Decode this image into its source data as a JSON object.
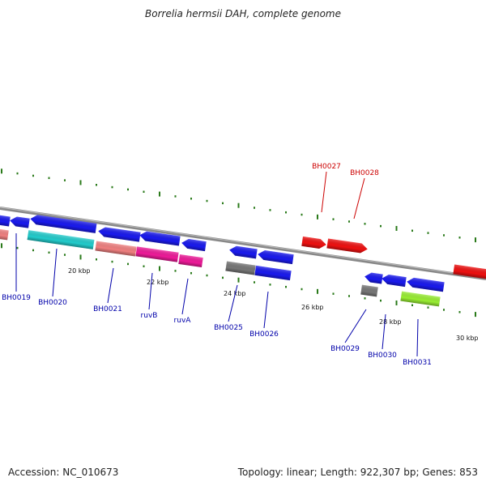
{
  "title": "Borrelia hermsii DAH, complete genome",
  "footer": {
    "accession": "Accession: NC_010673",
    "summary": "Topology: linear; Length: 922,307 bp; Genes: 853"
  },
  "colors": {
    "backbone": "#888888",
    "forward_label": "#cc0000",
    "reverse_label": "#0000aa",
    "tick": "#2a7a1a"
  },
  "ticks": [
    {
      "label": "20 kbp"
    },
    {
      "label": "22 kbp"
    },
    {
      "label": "24 kbp"
    },
    {
      "label": "26 kbp"
    },
    {
      "label": "28 kbp"
    },
    {
      "label": "30 kbp"
    }
  ],
  "genes": [
    {
      "id": "g0",
      "label": "",
      "color": "#f08080",
      "shape": "box"
    },
    {
      "id": "g1",
      "label": "",
      "color": "#1a1aee",
      "shape": "left"
    },
    {
      "id": "g2",
      "label": "",
      "color": "#1a1aee",
      "shape": "left"
    },
    {
      "id": "g3",
      "label": "BH0019",
      "color": "#1a1aee",
      "shape": "left"
    },
    {
      "id": "g4",
      "label": "BH0020",
      "color": "#22cccc",
      "shape": "box"
    },
    {
      "id": "g5",
      "label": "",
      "color": "#1a1aee",
      "shape": "left"
    },
    {
      "id": "g6",
      "label": "BH0021",
      "color": "#f08080",
      "shape": "box"
    },
    {
      "id": "g7",
      "label": "",
      "color": "#1a1aee",
      "shape": "left"
    },
    {
      "id": "g8",
      "label": "ruvB",
      "color": "#ee1a99",
      "shape": "box"
    },
    {
      "id": "g9",
      "label": "",
      "color": "#1a1aee",
      "shape": "left"
    },
    {
      "id": "g10",
      "label": "ruvA",
      "color": "#ee1a99",
      "shape": "box"
    },
    {
      "id": "g11",
      "label": "",
      "color": "#1a1aee",
      "shape": "left"
    },
    {
      "id": "g12",
      "label": "BH0025",
      "color": "#777777",
      "shape": "box"
    },
    {
      "id": "g13",
      "label": "",
      "color": "#1a1aee",
      "shape": "left"
    },
    {
      "id": "g14",
      "label": "BH0026",
      "color": "#1a1aee",
      "shape": "box"
    },
    {
      "id": "g15",
      "label": "BH0027",
      "color": "#ee1111",
      "shape": "right"
    },
    {
      "id": "g16",
      "label": "BH0028",
      "color": "#ee1111",
      "shape": "right"
    },
    {
      "id": "g17",
      "label": "",
      "color": "#1a1aee",
      "shape": "left"
    },
    {
      "id": "g18",
      "label": "BH0029",
      "color": "#777777",
      "shape": "box"
    },
    {
      "id": "g19",
      "label": "BH0030",
      "color": "#1a1aee",
      "shape": "left"
    },
    {
      "id": "g20",
      "label": "",
      "color": "#1a1aee",
      "shape": "left"
    },
    {
      "id": "g21",
      "label": "BH0031",
      "color": "#99ee33",
      "shape": "box"
    },
    {
      "id": "g22",
      "label": "",
      "color": "#ee1111",
      "shape": "right"
    }
  ]
}
